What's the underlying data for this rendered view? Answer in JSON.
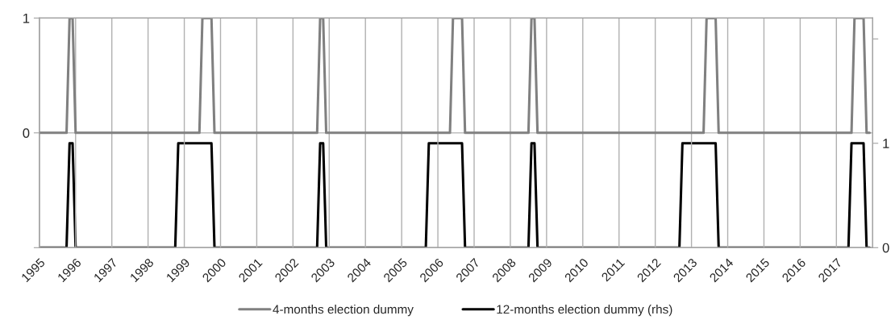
{
  "chart_data": {
    "type": "line",
    "xlim": [
      "1995",
      "2018"
    ],
    "xticks": [
      "1995",
      "1996",
      "1997",
      "1998",
      "1999",
      "2000",
      "2001",
      "2002",
      "2003",
      "2004",
      "2005",
      "2006",
      "2007",
      "2008",
      "2009",
      "2010",
      "2011",
      "2012",
      "2013",
      "2014",
      "2015",
      "2016",
      "2017"
    ],
    "ylim": [
      -1,
      1
    ],
    "yticks": [
      {
        "value": -1,
        "label": null
      },
      0,
      1
    ],
    "y2lim": [
      0,
      2.2
    ],
    "y2ticks": [
      0,
      1,
      {
        "value": 2,
        "label": null
      }
    ],
    "grid": true,
    "legend": "bottom",
    "line_style": "solid",
    "marker": "none",
    "series": [
      {
        "name": "4-months election dummy",
        "color": "#808080",
        "x": [
          "1995-01",
          "1995-10",
          "1995-11",
          "1995-12",
          "1996-01",
          "1999-06",
          "1999-07",
          "1999-10",
          "1999-11",
          "2002-09",
          "2002-10",
          "2002-11",
          "2002-12",
          "2006-05",
          "2006-06",
          "2006-09",
          "2006-10",
          "2008-07",
          "2008-08",
          "2008-09",
          "2008-10",
          "2013-05",
          "2013-06",
          "2013-09",
          "2013-10",
          "2017-06",
          "2017-07",
          "2017-10",
          "2017-11",
          "2017-12"
        ],
        "values": [
          0,
          0,
          1,
          1,
          0,
          0,
          1,
          1,
          0,
          0,
          1,
          1,
          0,
          0,
          1,
          1,
          0,
          0,
          1,
          1,
          0,
          0,
          1,
          1,
          0,
          0,
          1,
          1,
          0,
          0
        ]
      },
      {
        "name": "12-months election dummy (rhs)",
        "color": "#000000",
        "axis": "y2",
        "x": [
          "1995-01",
          "1995-10",
          "1995-11",
          "1995-12",
          "1996-01",
          "1998-10",
          "1998-11",
          "1999-10",
          "1999-11",
          "2002-09",
          "2002-10",
          "2002-11",
          "2002-12",
          "2005-09",
          "2005-10",
          "2006-09",
          "2006-10",
          "2008-07",
          "2008-08",
          "2008-09",
          "2008-10",
          "2012-09",
          "2012-10",
          "2013-09",
          "2013-10",
          "2017-05",
          "2017-06",
          "2017-10",
          "2017-11",
          "2017-12"
        ],
        "values": [
          0,
          0,
          1,
          1,
          0,
          0,
          1,
          1,
          0,
          0,
          1,
          1,
          0,
          0,
          1,
          1,
          0,
          0,
          1,
          1,
          0,
          0,
          1,
          1,
          0,
          0,
          1,
          1,
          0,
          0
        ]
      }
    ]
  }
}
